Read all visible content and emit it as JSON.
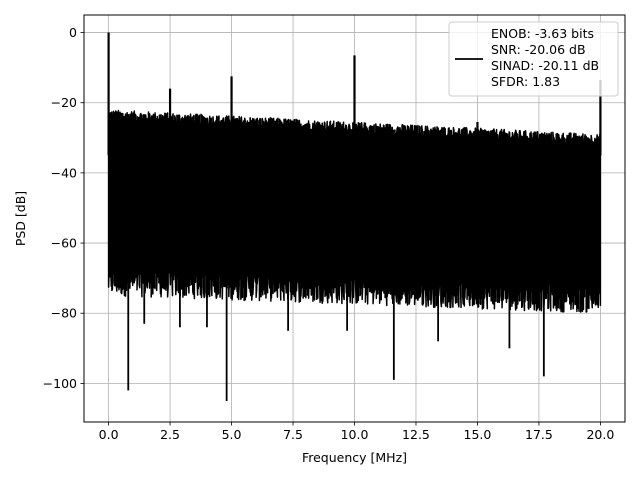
{
  "chart_data": {
    "type": "line",
    "title": "",
    "xlabel": "Frequency [MHz]",
    "ylabel": "PSD [dB]",
    "xlim": [
      -1.0,
      21.0
    ],
    "ylim": [
      -111.0,
      5.0
    ],
    "xticks": [
      0.0,
      2.5,
      5.0,
      7.5,
      10.0,
      12.5,
      15.0,
      17.5,
      20.0
    ],
    "xtick_labels": [
      "0.0",
      "2.5",
      "5.0",
      "7.5",
      "10.0",
      "12.5",
      "15.0",
      "17.5",
      "20.0"
    ],
    "yticks": [
      0,
      -20,
      -40,
      -60,
      -80,
      -100
    ],
    "ytick_labels": [
      "0",
      "−20",
      "−40",
      "−60",
      "−80",
      "−100"
    ],
    "grid": true,
    "legend_position": "top-right",
    "series": [
      {
        "color": "#000000",
        "noise_band": {
          "x_start": 0.0,
          "x_end": 20.0,
          "upper_db": [
            -25,
            -32
          ],
          "lower_db": [
            -75,
            -80
          ]
        },
        "spikes": [
          {
            "x": 0.0,
            "y": 0.0
          },
          {
            "x": 2.5,
            "y": -16.0
          },
          {
            "x": 5.0,
            "y": -12.5
          },
          {
            "x": 10.0,
            "y": -6.5
          },
          {
            "x": 15.0,
            "y": -25.5
          },
          {
            "x": 20.0,
            "y": -13.5
          }
        ],
        "dips": [
          {
            "x": 0.8,
            "y": -102.0
          },
          {
            "x": 1.45,
            "y": -83.0
          },
          {
            "x": 2.9,
            "y": -84.0
          },
          {
            "x": 4.0,
            "y": -84.0
          },
          {
            "x": 4.8,
            "y": -105.0
          },
          {
            "x": 7.3,
            "y": -85.0
          },
          {
            "x": 9.7,
            "y": -85.0
          },
          {
            "x": 11.6,
            "y": -99.0
          },
          {
            "x": 13.4,
            "y": -88.0
          },
          {
            "x": 16.3,
            "y": -90.0
          },
          {
            "x": 17.7,
            "y": -98.0
          }
        ]
      }
    ],
    "legend": {
      "lines": [
        "ENOB: -3.63 bits",
        "SNR: -20.06 dB",
        "SINAD: -20.11 dB",
        "SFDR: 1.83"
      ]
    }
  }
}
